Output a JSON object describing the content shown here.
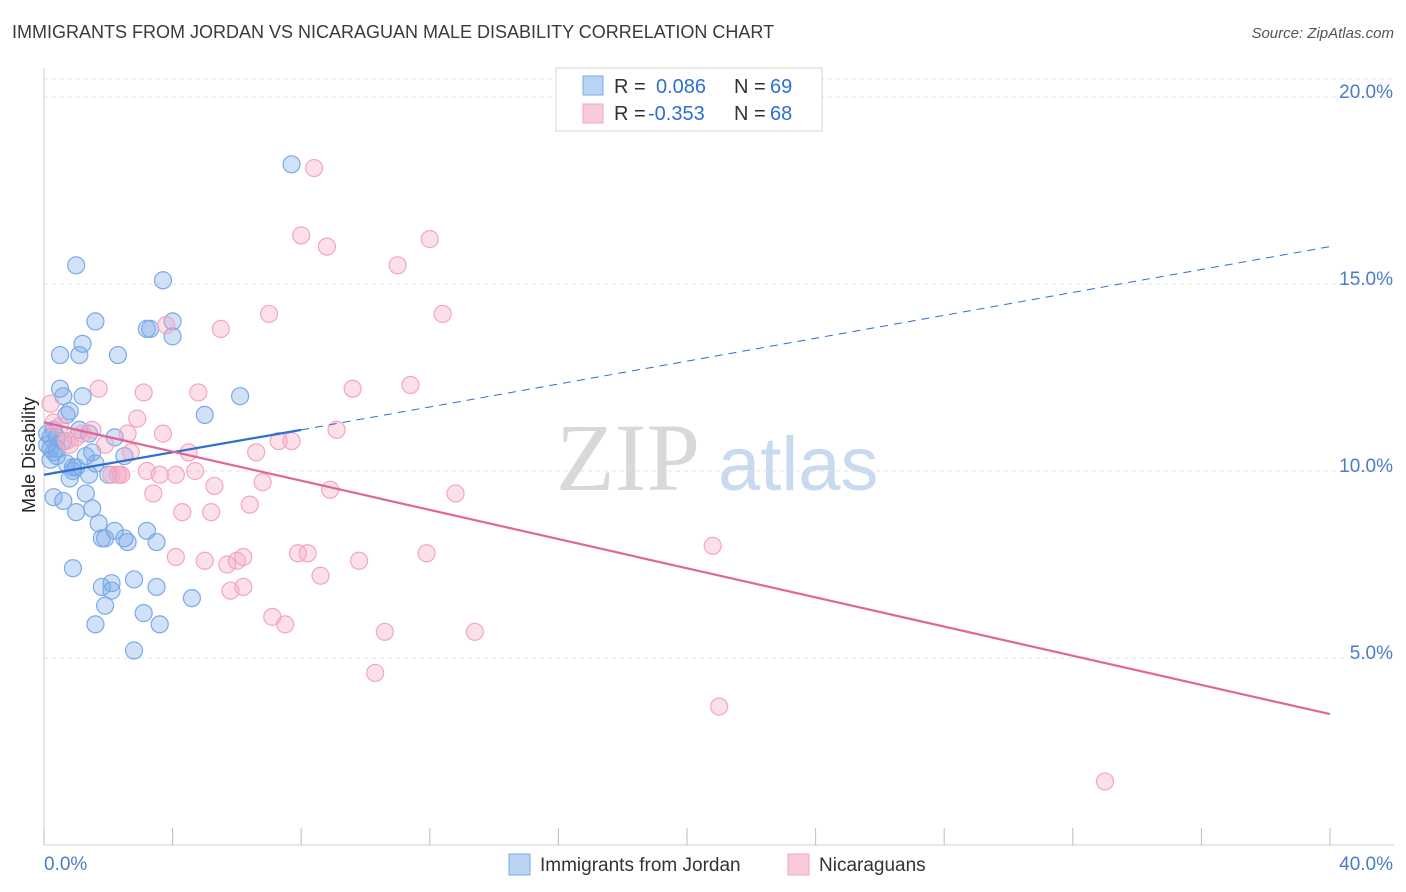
{
  "chart_data": {
    "type": "scatter",
    "title": "IMMIGRANTS FROM JORDAN VS NICARAGUAN MALE DISABILITY CORRELATION CHART",
    "source": "Source: ZipAtlas.com",
    "ylabel": "Male Disability",
    "xlabel": "",
    "xlim": [
      0,
      40
    ],
    "ylim": [
      0,
      21
    ],
    "x_tick_labels": [
      "0.0%",
      "40.0%"
    ],
    "y_tick_labels": [
      "5.0%",
      "10.0%",
      "15.0%",
      "20.0%"
    ],
    "y_ticks": [
      5,
      10,
      15,
      20
    ],
    "watermark": {
      "part1": "ZIP",
      "part2": "atlas"
    },
    "legend_box": [
      {
        "r_label": "R =",
        "r_value": "0.086",
        "n_label": "N =",
        "n_value": "69"
      },
      {
        "r_label": "R =",
        "r_value": "-0.353",
        "n_label": "N =",
        "n_value": "68"
      }
    ],
    "series": [
      {
        "name": "Immigrants from Jordan",
        "color": "#7aaae8",
        "line_color": "#2e6fd0",
        "trend": {
          "x0": 0,
          "y0": 9.9,
          "x1": 8,
          "y1": 11.1,
          "dashed_to_x": 40,
          "dashed_y": 16.0
        },
        "points": [
          [
            0.1,
            11.0
          ],
          [
            0.1,
            10.7
          ],
          [
            0.2,
            10.6
          ],
          [
            0.2,
            10.3
          ],
          [
            0.3,
            11.1
          ],
          [
            0.3,
            9.3
          ],
          [
            0.4,
            10.9
          ],
          [
            0.4,
            10.6
          ],
          [
            0.5,
            13.1
          ],
          [
            0.5,
            12.2
          ],
          [
            0.6,
            12.0
          ],
          [
            0.6,
            9.2
          ],
          [
            0.7,
            11.5
          ],
          [
            0.7,
            10.2
          ],
          [
            0.8,
            11.6
          ],
          [
            0.8,
            9.8
          ],
          [
            0.9,
            10.0
          ],
          [
            0.9,
            7.4
          ],
          [
            1.0,
            10.1
          ],
          [
            1.0,
            8.9
          ],
          [
            1.0,
            15.5
          ],
          [
            1.1,
            11.1
          ],
          [
            1.1,
            13.1
          ],
          [
            1.2,
            13.4
          ],
          [
            1.2,
            12.0
          ],
          [
            1.3,
            10.4
          ],
          [
            1.3,
            9.4
          ],
          [
            1.4,
            11.0
          ],
          [
            1.4,
            9.9
          ],
          [
            1.5,
            10.5
          ],
          [
            1.5,
            9.0
          ],
          [
            1.6,
            10.2
          ],
          [
            1.6,
            14.0
          ],
          [
            1.7,
            8.6
          ],
          [
            1.8,
            8.2
          ],
          [
            1.8,
            6.9
          ],
          [
            1.9,
            6.4
          ],
          [
            1.9,
            8.2
          ],
          [
            2.0,
            9.9
          ],
          [
            2.1,
            6.8
          ],
          [
            2.1,
            7.0
          ],
          [
            2.2,
            8.4
          ],
          [
            2.3,
            13.1
          ],
          [
            2.5,
            8.2
          ],
          [
            2.6,
            8.1
          ],
          [
            2.5,
            10.4
          ],
          [
            2.8,
            7.1
          ],
          [
            3.1,
            6.2
          ],
          [
            3.2,
            13.8
          ],
          [
            3.2,
            8.4
          ],
          [
            3.3,
            13.8
          ],
          [
            3.5,
            8.1
          ],
          [
            3.5,
            6.9
          ],
          [
            3.6,
            5.9
          ],
          [
            3.7,
            15.1
          ],
          [
            4.0,
            13.6
          ],
          [
            4.0,
            14.0
          ],
          [
            4.6,
            6.6
          ],
          [
            5.0,
            11.5
          ],
          [
            6.1,
            12.0
          ],
          [
            7.7,
            18.2
          ],
          [
            0.3,
            10.5
          ],
          [
            0.6,
            10.8
          ],
          [
            0.9,
            10.1
          ],
          [
            2.8,
            5.2
          ],
          [
            1.6,
            5.9
          ],
          [
            2.2,
            10.9
          ],
          [
            0.4,
            10.4
          ],
          [
            0.2,
            10.9
          ]
        ]
      },
      {
        "name": "Nicaraguans",
        "color": "#f4a6bf",
        "line_color": "#e0659a",
        "trend": {
          "x0": 0,
          "y0": 11.3,
          "x1": 40,
          "y1": 3.5
        },
        "points": [
          [
            0.2,
            11.8
          ],
          [
            0.3,
            11.3
          ],
          [
            0.5,
            11.2
          ],
          [
            0.7,
            10.8
          ],
          [
            1.0,
            10.9
          ],
          [
            1.2,
            11.0
          ],
          [
            1.5,
            11.1
          ],
          [
            1.7,
            12.2
          ],
          [
            1.9,
            10.7
          ],
          [
            2.1,
            9.9
          ],
          [
            2.3,
            9.9
          ],
          [
            2.4,
            9.9
          ],
          [
            2.6,
            11.0
          ],
          [
            2.7,
            10.5
          ],
          [
            2.9,
            11.4
          ],
          [
            3.1,
            12.1
          ],
          [
            3.2,
            10.0
          ],
          [
            3.4,
            9.4
          ],
          [
            3.6,
            9.9
          ],
          [
            3.8,
            13.9
          ],
          [
            4.1,
            7.7
          ],
          [
            4.1,
            9.9
          ],
          [
            4.3,
            8.9
          ],
          [
            4.5,
            10.5
          ],
          [
            4.7,
            10.0
          ],
          [
            4.8,
            12.1
          ],
          [
            5.0,
            7.6
          ],
          [
            5.2,
            8.9
          ],
          [
            5.3,
            9.6
          ],
          [
            5.5,
            13.8
          ],
          [
            5.7,
            7.5
          ],
          [
            5.8,
            6.8
          ],
          [
            6.0,
            7.6
          ],
          [
            6.2,
            6.9
          ],
          [
            6.2,
            7.7
          ],
          [
            6.4,
            9.1
          ],
          [
            6.6,
            10.5
          ],
          [
            6.8,
            9.7
          ],
          [
            7.0,
            14.2
          ],
          [
            7.1,
            6.1
          ],
          [
            7.3,
            10.8
          ],
          [
            7.5,
            5.9
          ],
          [
            7.7,
            10.8
          ],
          [
            7.9,
            7.8
          ],
          [
            8.0,
            16.3
          ],
          [
            8.2,
            7.8
          ],
          [
            8.4,
            18.1
          ],
          [
            8.6,
            7.2
          ],
          [
            8.8,
            16.0
          ],
          [
            8.9,
            9.5
          ],
          [
            9.1,
            11.1
          ],
          [
            9.6,
            12.2
          ],
          [
            9.8,
            7.6
          ],
          [
            10.3,
            4.6
          ],
          [
            10.6,
            5.7
          ],
          [
            11.0,
            15.5
          ],
          [
            11.4,
            12.3
          ],
          [
            11.9,
            7.8
          ],
          [
            12.0,
            16.2
          ],
          [
            12.4,
            14.2
          ],
          [
            12.8,
            9.4
          ],
          [
            13.4,
            5.7
          ],
          [
            20.8,
            8.0
          ],
          [
            21.0,
            3.7
          ],
          [
            33.0,
            1.7
          ],
          [
            0.8,
            10.7
          ],
          [
            2.4,
            9.9
          ],
          [
            3.7,
            11.0
          ]
        ]
      }
    ]
  }
}
